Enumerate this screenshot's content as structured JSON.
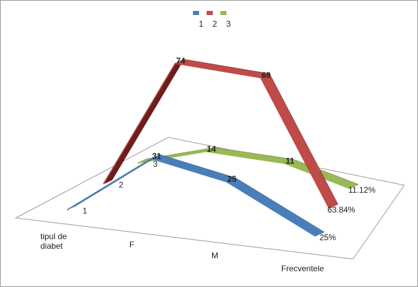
{
  "chart_data": {
    "type": "line3d",
    "categories": [
      "tipul de diabet",
      "F",
      "M",
      "Frecventele"
    ],
    "series": [
      {
        "name": "1",
        "color": "#4a7ebb",
        "values": [
          1,
          31,
          25,
          0.25
        ],
        "value_labels": [
          "1",
          "31",
          "25",
          "25%"
        ]
      },
      {
        "name": "2",
        "color": "#be4b48",
        "values": [
          2,
          74,
          69,
          0.6384
        ],
        "value_labels": [
          "2",
          "74",
          "69",
          "63.84%"
        ]
      },
      {
        "name": "3",
        "color": "#98b954",
        "values": [
          3,
          14,
          11,
          0.1112
        ],
        "value_labels": [
          "3",
          "14",
          "11",
          "11.12%"
        ]
      }
    ],
    "legend": "top"
  }
}
